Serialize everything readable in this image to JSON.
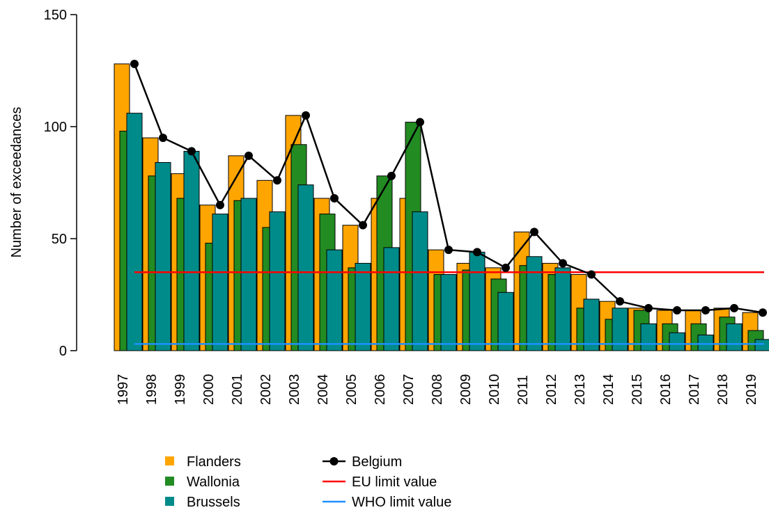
{
  "chart_data": {
    "type": "bar",
    "y_label": "Number of exceedances",
    "categories": [
      "1997",
      "1998",
      "1999",
      "2000",
      "2001",
      "2002",
      "2003",
      "2004",
      "2005",
      "2006",
      "2007",
      "2008",
      "2009",
      "2010",
      "2011",
      "2012",
      "2013",
      "2014",
      "2015",
      "2016",
      "2017",
      "2018",
      "2019"
    ],
    "series": [
      {
        "name": "Flanders",
        "color": "#ffa500",
        "values": [
          128,
          95,
          79,
          65,
          87,
          76,
          105,
          68,
          56,
          68,
          68,
          45,
          39,
          37,
          53,
          39,
          34,
          22,
          19,
          18,
          18,
          19,
          17
        ]
      },
      {
        "name": "Wallonia",
        "color": "#228b22",
        "values": [
          98,
          78,
          68,
          48,
          67,
          55,
          92,
          61,
          37,
          78,
          102,
          34,
          36,
          32,
          38,
          34,
          19,
          14,
          18,
          12,
          12,
          15,
          9
        ]
      },
      {
        "name": "Brussels",
        "color": "#008b8b",
        "values": [
          106,
          84,
          89,
          61,
          68,
          62,
          74,
          45,
          39,
          46,
          62,
          34,
          44,
          26,
          42,
          37,
          23,
          19,
          12,
          8,
          7,
          12,
          5
        ]
      }
    ],
    "line_series": [
      {
        "name": "Belgium",
        "color": "#000000",
        "values": [
          128,
          95,
          89,
          65,
          87,
          76,
          105,
          68,
          56,
          78,
          102,
          45,
          44,
          37,
          53,
          39,
          34,
          22,
          19,
          18,
          18,
          19,
          17
        ]
      }
    ],
    "reference_lines": [
      {
        "name": "EU limit value",
        "color": "#ff0000",
        "value": 35
      },
      {
        "name": "WHO limit value",
        "color": "#1e90ff",
        "value": 3
      }
    ],
    "ylim": [
      0,
      150
    ],
    "yticks": [
      0,
      50,
      100,
      150
    ]
  }
}
